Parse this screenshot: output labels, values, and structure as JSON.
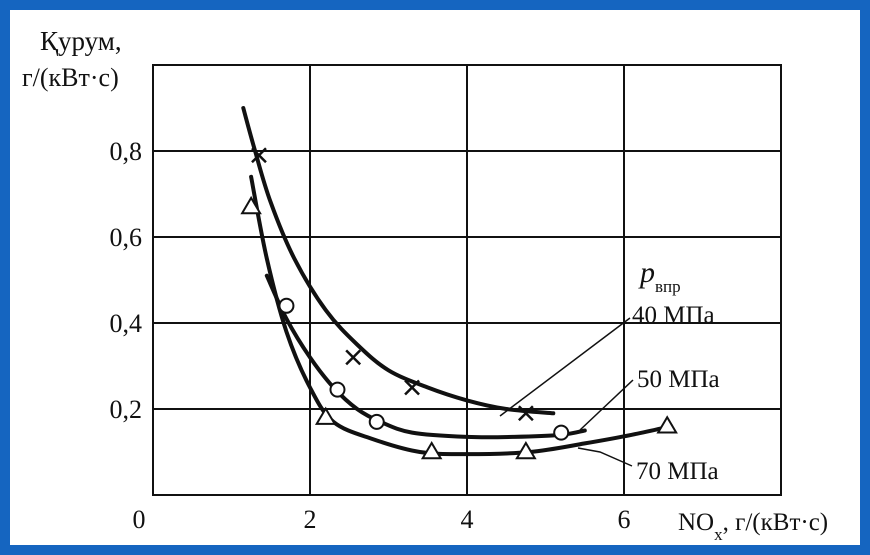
{
  "chart_data": {
    "type": "line",
    "ylabel": [
      "Қурум,",
      "г/(кВт·с)"
    ],
    "xlabel_main": "NO",
    "xlabel_sub": "x",
    "xlabel_unit": ", г/(кВт·с)",
    "xlim": [
      0,
      8
    ],
    "ylim": [
      0,
      1.0
    ],
    "x_ticks": [
      "0",
      "2",
      "4",
      "6"
    ],
    "y_ticks": [
      "0,2",
      "0,4",
      "0,6",
      "0,8"
    ],
    "grid": true,
    "legend_title": {
      "symbol": "p",
      "subscript": "впр"
    },
    "series": [
      {
        "name": "40 МПа",
        "marker": "x",
        "curve": [
          [
            1.15,
            0.9
          ],
          [
            1.3,
            0.8
          ],
          [
            1.5,
            0.68
          ],
          [
            1.8,
            0.55
          ],
          [
            2.2,
            0.43
          ],
          [
            2.6,
            0.35
          ],
          [
            3.0,
            0.29
          ],
          [
            3.5,
            0.25
          ],
          [
            4.0,
            0.22
          ],
          [
            4.5,
            0.2
          ],
          [
            5.1,
            0.19
          ]
        ],
        "points": [
          [
            1.35,
            0.79
          ],
          [
            2.55,
            0.32
          ],
          [
            3.3,
            0.25
          ],
          [
            4.75,
            0.19
          ]
        ]
      },
      {
        "name": "50 МПа",
        "marker": "o",
        "curve": [
          [
            1.45,
            0.51
          ],
          [
            1.7,
            0.41
          ],
          [
            2.0,
            0.32
          ],
          [
            2.3,
            0.25
          ],
          [
            2.6,
            0.2
          ],
          [
            2.9,
            0.17
          ],
          [
            3.3,
            0.145
          ],
          [
            4.0,
            0.135
          ],
          [
            4.6,
            0.135
          ],
          [
            5.2,
            0.14
          ],
          [
            5.5,
            0.15
          ]
        ],
        "points": [
          [
            1.7,
            0.44
          ],
          [
            2.35,
            0.245
          ],
          [
            2.85,
            0.17
          ],
          [
            5.2,
            0.145
          ]
        ]
      },
      {
        "name": "70 МПа",
        "marker": "triangle",
        "curve": [
          [
            1.25,
            0.74
          ],
          [
            1.45,
            0.55
          ],
          [
            1.7,
            0.38
          ],
          [
            2.0,
            0.25
          ],
          [
            2.3,
            0.17
          ],
          [
            2.8,
            0.13
          ],
          [
            3.4,
            0.1
          ],
          [
            4.0,
            0.095
          ],
          [
            4.8,
            0.1
          ],
          [
            5.5,
            0.12
          ],
          [
            6.1,
            0.14
          ],
          [
            6.6,
            0.16
          ]
        ],
        "points": [
          [
            1.25,
            0.67
          ],
          [
            2.2,
            0.18
          ],
          [
            3.55,
            0.1
          ],
          [
            4.75,
            0.1
          ],
          [
            6.55,
            0.16
          ]
        ]
      }
    ]
  }
}
